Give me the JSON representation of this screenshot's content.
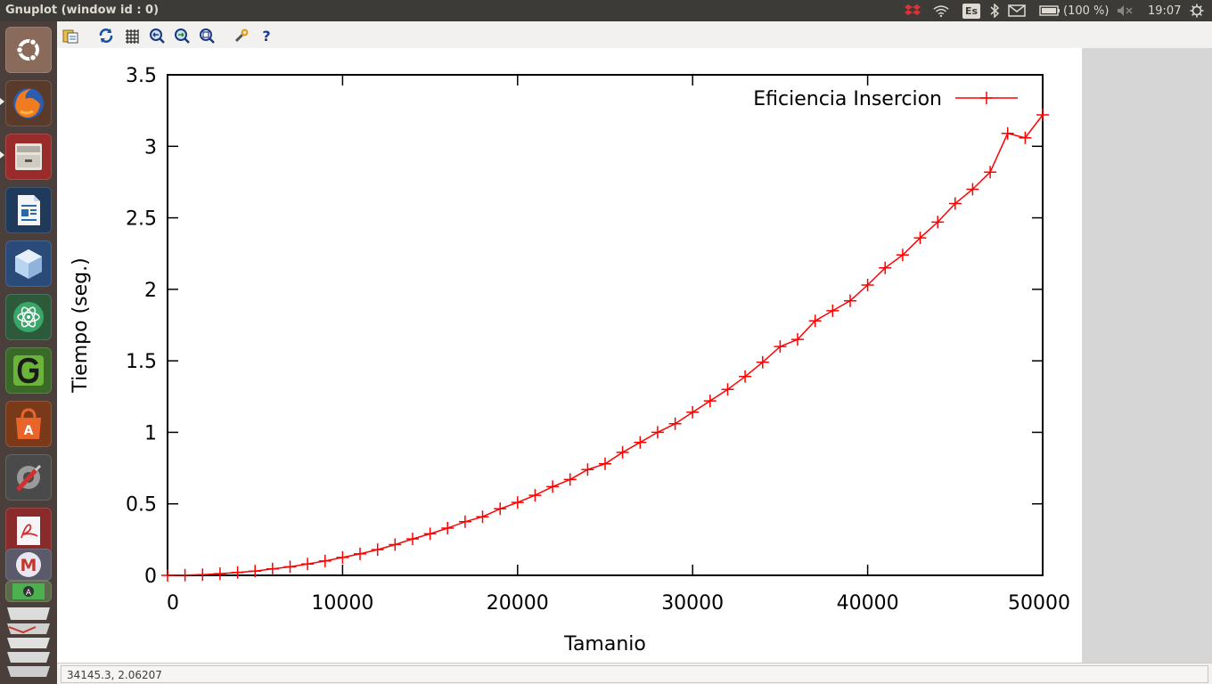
{
  "window": {
    "title": "Gnuplot (window id : 0)"
  },
  "tray": {
    "language": "Es",
    "battery": "(100 %)",
    "time": "19:07",
    "icons": [
      "dropbox-icon",
      "wifi-icon",
      "keyboard-layout-icon",
      "bluetooth-icon",
      "mail-icon",
      "battery-icon",
      "volume-muted-icon",
      "power-icon"
    ]
  },
  "launcher": {
    "items": [
      "ubuntu-dash",
      "firefox",
      "file-manager",
      "libreoffice-writer",
      "virtualbox",
      "atom",
      "gedit",
      "software-center",
      "system-settings",
      "document-viewer",
      "maxima",
      "workspaces"
    ]
  },
  "toolbar": {
    "icons": [
      "copy-clipboard-icon",
      "replot-icon",
      "grid-icon",
      "zoom-previous-icon",
      "zoom-next-icon",
      "autoscale-icon",
      "settings-icon",
      "help-icon"
    ]
  },
  "statusbar": {
    "coords": "34145.3,  2.06207"
  },
  "colors": {
    "series": "#ff0000",
    "panel": "#3c3b37",
    "launcher": "#4a3f3b"
  },
  "chart_data": {
    "type": "line",
    "title": "",
    "xlabel": "Tamanio",
    "ylabel": "Tiempo (seg.)",
    "xlim": [
      0,
      50000
    ],
    "ylim": [
      0,
      3.5
    ],
    "xticks": [
      "0",
      "10000",
      "20000",
      "30000",
      "40000",
      "50000"
    ],
    "yticks": [
      "0",
      "0.5",
      "1",
      "1.5",
      "2",
      "2.5",
      "3",
      "3.5"
    ],
    "legend_position": "top-right",
    "grid": false,
    "series": [
      {
        "name": "Eficiencia Insercion",
        "marker": "plus",
        "color": "#ff0000",
        "x": [
          0,
          1000,
          2000,
          3000,
          4000,
          5000,
          6000,
          7000,
          8000,
          9000,
          10000,
          11000,
          12000,
          13000,
          14000,
          15000,
          16000,
          17000,
          18000,
          19000,
          20000,
          21000,
          22000,
          23000,
          24000,
          25000,
          26000,
          27000,
          28000,
          29000,
          30000,
          31000,
          32000,
          33000,
          34000,
          35000,
          36000,
          37000,
          38000,
          39000,
          40000,
          41000,
          42000,
          43000,
          44000,
          45000,
          46000,
          47000,
          48000,
          49000,
          50000
        ],
        "y": [
          0,
          0.002,
          0.005,
          0.012,
          0.02,
          0.03,
          0.045,
          0.06,
          0.08,
          0.1,
          0.125,
          0.15,
          0.18,
          0.215,
          0.255,
          0.29,
          0.33,
          0.375,
          0.41,
          0.465,
          0.51,
          0.56,
          0.62,
          0.67,
          0.74,
          0.78,
          0.86,
          0.93,
          1.0,
          1.06,
          1.14,
          1.22,
          1.3,
          1.39,
          1.49,
          1.6,
          1.65,
          1.78,
          1.85,
          1.92,
          2.03,
          2.15,
          2.24,
          2.36,
          2.47,
          2.6,
          2.7,
          2.82,
          3.09,
          3.06,
          3.22
        ]
      }
    ]
  }
}
